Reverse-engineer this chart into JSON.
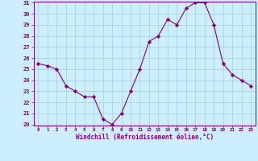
{
  "x": [
    0,
    1,
    2,
    3,
    4,
    5,
    6,
    7,
    8,
    9,
    10,
    11,
    12,
    13,
    14,
    15,
    16,
    17,
    18,
    19,
    20,
    21,
    22,
    23
  ],
  "y": [
    25.5,
    25.3,
    25.0,
    23.5,
    23.0,
    22.5,
    22.5,
    20.5,
    20.0,
    21.0,
    23.0,
    25.0,
    27.5,
    28.0,
    29.5,
    29.0,
    30.5,
    31.0,
    31.0,
    29.0,
    25.5,
    24.5,
    24.0,
    23.5
  ],
  "line_color": "#800080",
  "marker": "D",
  "marker_size": 2.2,
  "bg_color": "#cceeff",
  "grid_color": "#aad4d4",
  "xlabel": "Windchill (Refroidissement éolien,°C)",
  "xlabel_color": "#800080",
  "tick_label_color": "#800080",
  "ylim": [
    20,
    31
  ],
  "xlim": [
    -0.5,
    23.5
  ],
  "yticks": [
    20,
    21,
    22,
    23,
    24,
    25,
    26,
    27,
    28,
    29,
    30,
    31
  ],
  "xticks": [
    0,
    1,
    2,
    3,
    4,
    5,
    6,
    7,
    8,
    9,
    10,
    11,
    12,
    13,
    14,
    15,
    16,
    17,
    18,
    19,
    20,
    21,
    22,
    23
  ],
  "spine_color": "#800080"
}
